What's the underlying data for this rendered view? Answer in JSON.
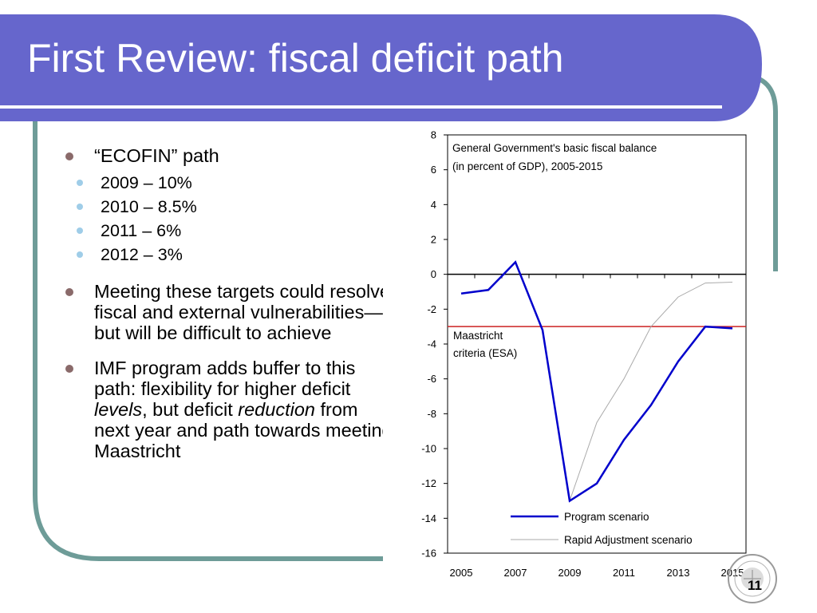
{
  "slide": {
    "title": "First Review: fiscal deficit path",
    "page_number": "11",
    "colors": {
      "title_band": "#6666cc",
      "frame": "#6e9c98",
      "title_rule": "#ffffff"
    }
  },
  "bullets": [
    {
      "head": "“ECOFIN” path",
      "sub": [
        "2009 – 10%",
        "2010 – 8.5%",
        "2011 – 6%",
        "2012 – 3%"
      ]
    },
    {
      "text": "Meeting these targets could resolve fiscal and external vulnerabilities—but will be difficult to achieve"
    },
    {
      "pre": "IMF program adds buffer to this path: flexibility for higher deficit ",
      "em1": "levels",
      "mid": ", but deficit ",
      "em2": "reduction",
      "post": " from next year and path towards meeting Maastricht"
    }
  ],
  "chart_data": {
    "type": "line",
    "title": "General Government's basic fiscal balance",
    "subtitle": "(in percent of GDP), 2005-2015",
    "x": [
      2005,
      2006,
      2007,
      2008,
      2009,
      2010,
      2011,
      2012,
      2013,
      2014,
      2015
    ],
    "x_tick_labels": [
      "2005",
      "2007",
      "2009",
      "2011",
      "2013",
      "2015"
    ],
    "x_tick_values": [
      2005,
      2007,
      2009,
      2011,
      2013,
      2015
    ],
    "y_ticks": [
      8,
      6,
      4,
      2,
      0,
      -2,
      -4,
      -6,
      -8,
      -10,
      -12,
      -14,
      -16
    ],
    "xlim": [
      2004.5,
      2015.5
    ],
    "ylim": [
      -16,
      8
    ],
    "series": [
      {
        "name": "Program scenario",
        "color": "#0000cc",
        "values": [
          -1.1,
          -0.9,
          0.7,
          -3.2,
          -13.0,
          -12.0,
          -9.5,
          -7.5,
          -5.0,
          -3.0,
          -3.1
        ]
      },
      {
        "name": "Rapid Adjustment scenario",
        "color": "#aaaaaa",
        "values": [
          null,
          null,
          null,
          null,
          -13.0,
          -8.5,
          -6.0,
          -3.0,
          -1.3,
          -0.5,
          -0.45
        ]
      }
    ],
    "reference_line": {
      "y": -3,
      "color": "#cc2222",
      "label_line1": "Maastricht",
      "label_line2": "criteria (ESA)"
    },
    "legend": "bottom-right",
    "grid": false
  }
}
